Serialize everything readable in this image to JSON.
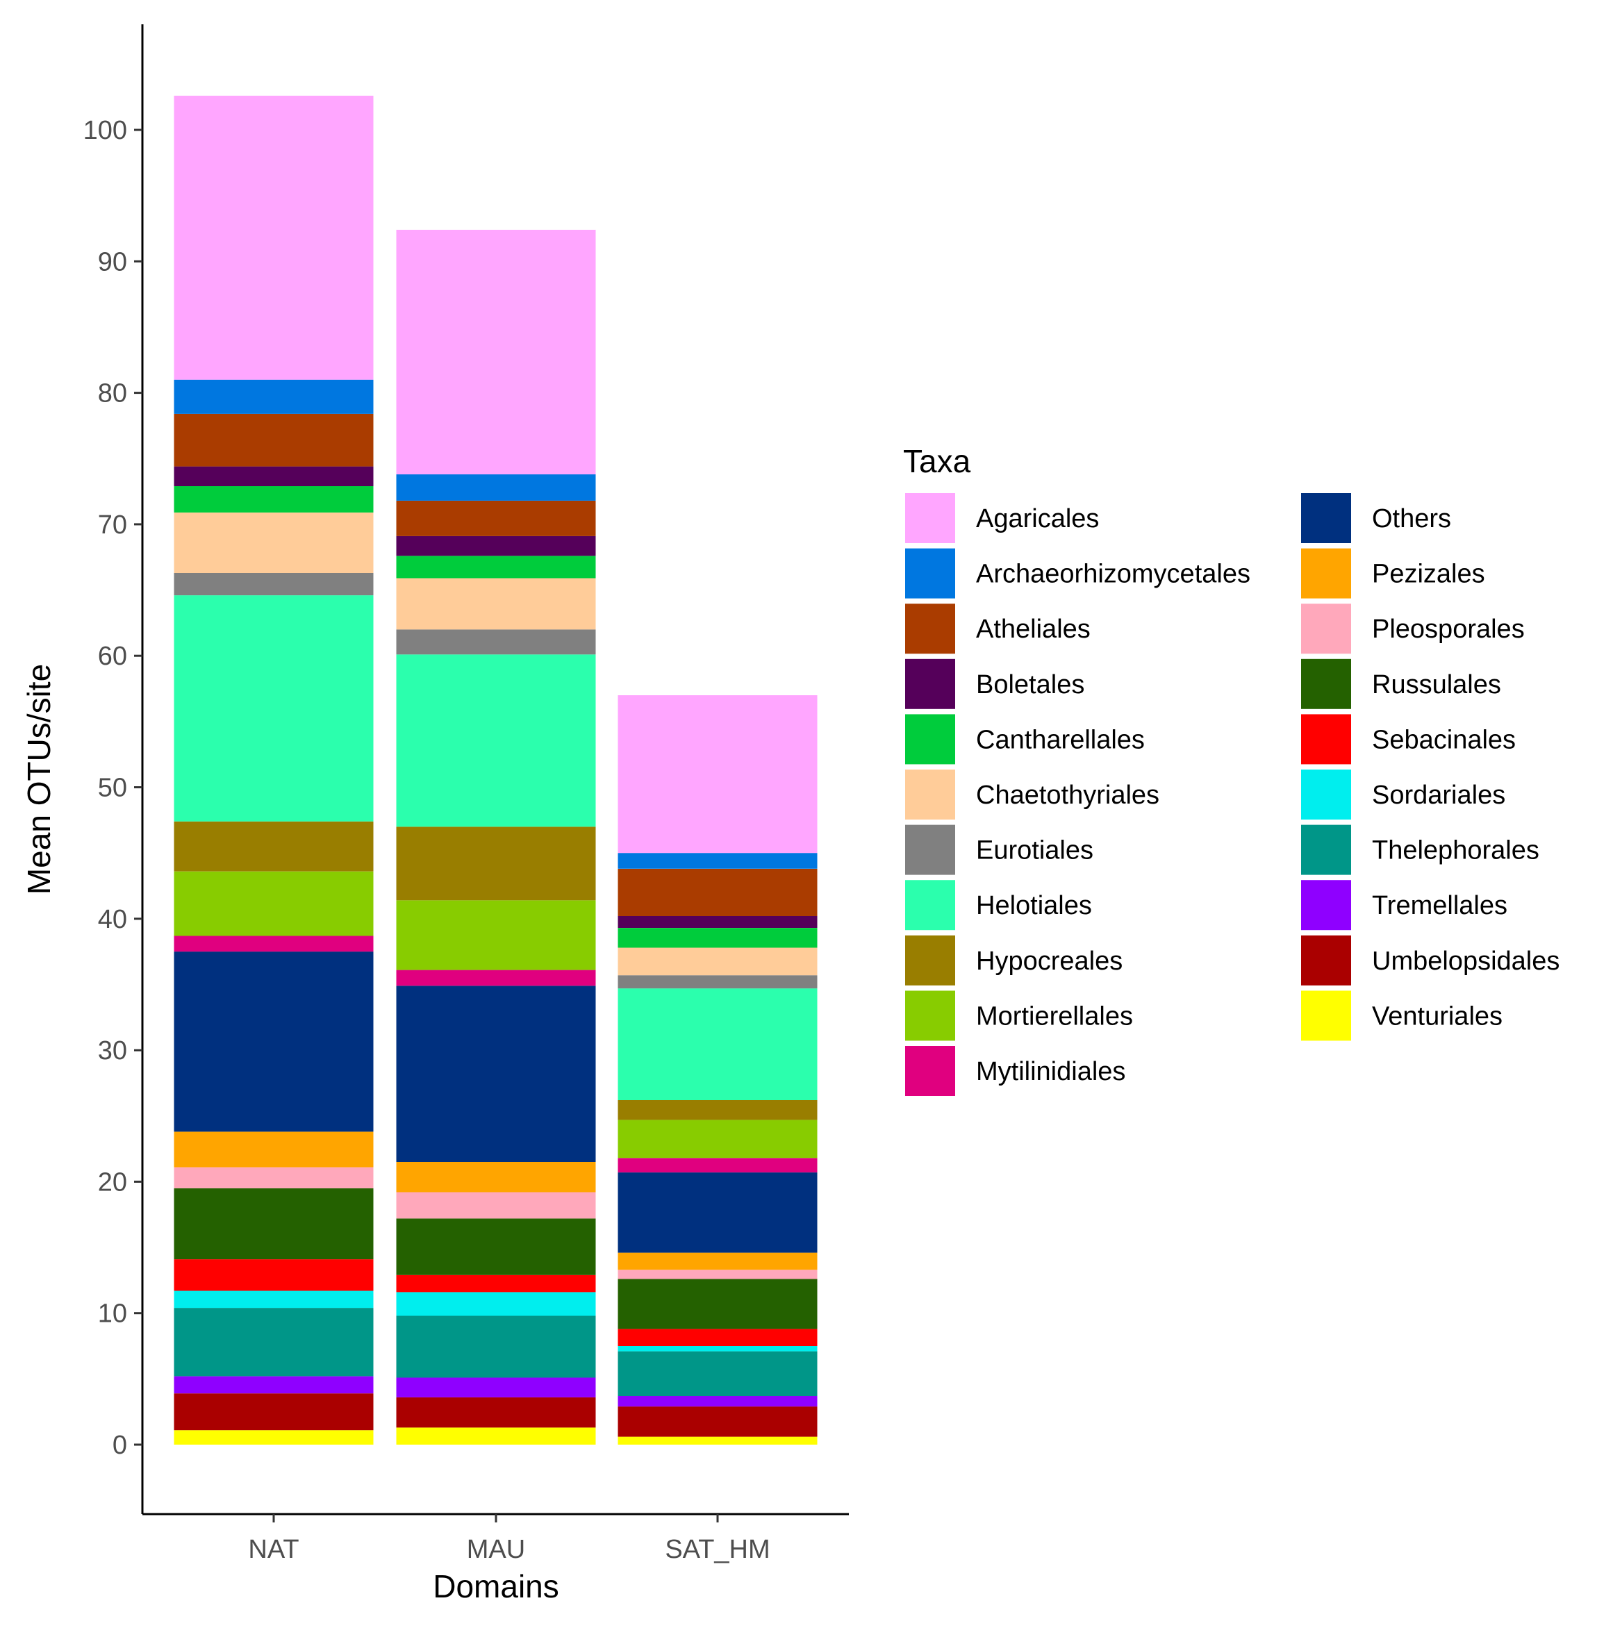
{
  "chart_data": {
    "type": "bar",
    "stacked": true,
    "title": "",
    "xlabel": "Domains",
    "ylabel": "Mean OTUs/site",
    "ylim": [
      -5,
      108
    ],
    "yticks": [
      0,
      10,
      20,
      30,
      40,
      50,
      60,
      70,
      80,
      90,
      100
    ],
    "grid": false,
    "legend_title": "Taxa",
    "legend_position": "right",
    "categories": [
      "NAT",
      "MAU",
      "SAT_HM"
    ],
    "stack_order": [
      "Venturiales",
      "Umbelopsidales",
      "Tremellales",
      "Thelephorales",
      "Sordariales",
      "Sebacinales",
      "Russulales",
      "Pleosporales",
      "Pezizales",
      "Others",
      "Mytilinidiales",
      "Mortierellales",
      "Hypocreales",
      "Helotiales",
      "Eurotiales",
      "Chaetothyriales",
      "Cantharellales",
      "Boletales",
      "Atheliales",
      "Archaeorhizomycetales",
      "Agaricales"
    ],
    "series": [
      {
        "name": "Agaricales",
        "color": "#FFA6FF",
        "values": [
          21.6,
          18.6,
          12.0
        ]
      },
      {
        "name": "Archaeorhizomycetales",
        "color": "#0077E0",
        "values": [
          2.6,
          2.0,
          1.2
        ]
      },
      {
        "name": "Atheliales",
        "color": "#AA3C00",
        "values": [
          4.0,
          2.7,
          3.6
        ]
      },
      {
        "name": "Boletales",
        "color": "#55005A",
        "values": [
          1.5,
          1.5,
          0.9
        ]
      },
      {
        "name": "Cantharellales",
        "color": "#00CC3C",
        "values": [
          2.0,
          1.7,
          1.5
        ]
      },
      {
        "name": "Chaetothyriales",
        "color": "#FFCC99",
        "values": [
          4.6,
          3.9,
          2.1
        ]
      },
      {
        "name": "Eurotiales",
        "color": "#808080",
        "values": [
          1.7,
          1.9,
          1.0
        ]
      },
      {
        "name": "Helotiales",
        "color": "#2BFFAD",
        "values": [
          17.2,
          13.1,
          8.5
        ]
      },
      {
        "name": "Hypocreales",
        "color": "#997E00",
        "values": [
          3.8,
          5.6,
          1.5
        ]
      },
      {
        "name": "Mortierellales",
        "color": "#88CC00",
        "values": [
          4.9,
          5.3,
          2.9
        ]
      },
      {
        "name": "Mytilinidiales",
        "color": "#E0007F",
        "values": [
          1.2,
          1.2,
          1.1
        ]
      },
      {
        "name": "Others",
        "color": "#00307F",
        "values": [
          13.7,
          13.4,
          6.1
        ]
      },
      {
        "name": "Pezizales",
        "color": "#FFA500",
        "values": [
          2.7,
          2.3,
          1.3
        ]
      },
      {
        "name": "Pleosporales",
        "color": "#FFA8BB",
        "values": [
          1.6,
          2.0,
          0.7
        ]
      },
      {
        "name": "Russulales",
        "color": "#246100",
        "values": [
          5.4,
          4.3,
          3.8
        ]
      },
      {
        "name": "Sebacinales",
        "color": "#FF0000",
        "values": [
          2.4,
          1.3,
          1.3
        ]
      },
      {
        "name": "Sordariales",
        "color": "#00EEEE",
        "values": [
          1.3,
          1.8,
          0.4
        ]
      },
      {
        "name": "Thelephorales",
        "color": "#009688",
        "values": [
          5.2,
          4.7,
          3.4
        ]
      },
      {
        "name": "Tremellales",
        "color": "#8F00FF",
        "values": [
          1.3,
          1.5,
          0.8
        ]
      },
      {
        "name": "Umbelopsidales",
        "color": "#AA0000",
        "values": [
          2.8,
          2.3,
          2.3
        ]
      },
      {
        "name": "Venturiales",
        "color": "#FFFF00",
        "values": [
          1.1,
          1.3,
          0.6
        ]
      }
    ]
  }
}
